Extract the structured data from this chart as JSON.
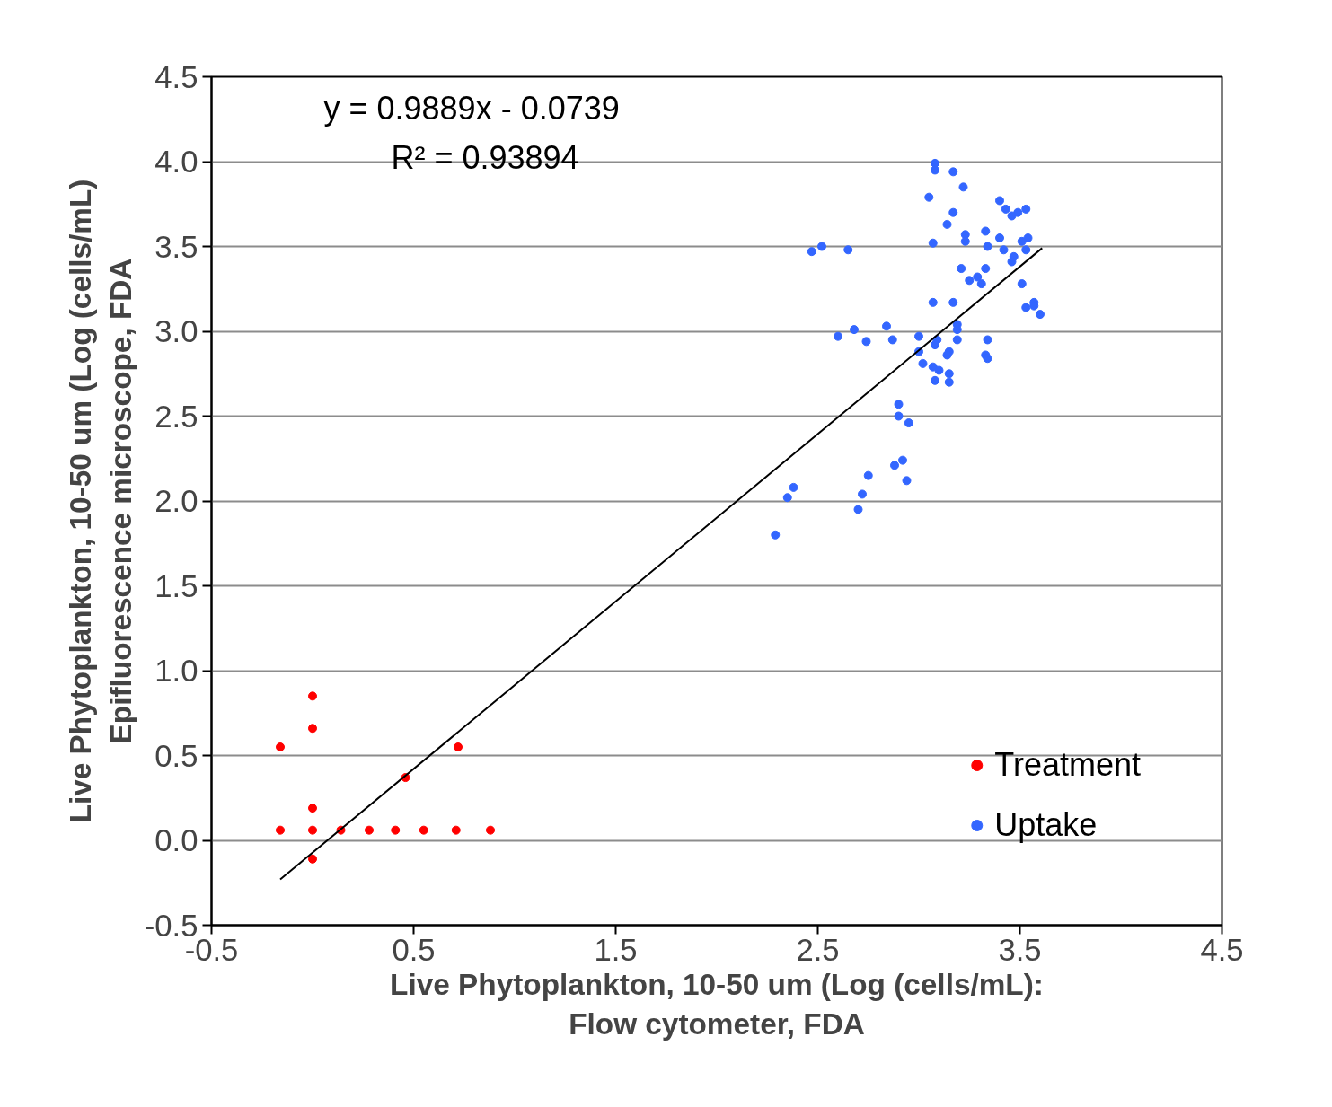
{
  "chart_data": {
    "type": "scatter",
    "xlabel": "Live Phytoplankton, 10-50 um (Log (cells/mL):\nFlow cytometer, FDA",
    "ylabel": "Live Phytoplankton, 10-50 um (Log (cells/mL)\nEpifluorescence microscope, FDA",
    "annotations": [
      "y = 0.9889x - 0.0739",
      "R² = 0.93894"
    ],
    "xlim": [
      -0.5,
      4.5
    ],
    "ylim": [
      -0.5,
      4.5
    ],
    "xticks": [
      -0.5,
      0.5,
      1.5,
      2.5,
      3.5,
      4.5
    ],
    "yticks": [
      -0.5,
      {
        "value": 0,
        "label": "0.0"
      },
      0.5,
      {
        "value": 1,
        "label": "1.0"
      },
      1.5,
      {
        "value": 2,
        "label": "2.0"
      },
      2.5,
      {
        "value": 3,
        "label": "3.0"
      },
      3.5,
      {
        "value": 4,
        "label": "4.0"
      },
      4.5
    ],
    "grid": "y",
    "legend": "bottom right",
    "series": [
      {
        "name": "Treatment",
        "color": "#ff0000",
        "marker": "circle",
        "x": [
          -0.16,
          0.0,
          0.0,
          0.0,
          0.0,
          0.72,
          0.46,
          -0.16,
          0.0,
          0.14,
          0.28,
          0.41,
          0.55,
          0.71,
          0.88
        ],
        "values": [
          0.55,
          0.85,
          0.66,
          0.19,
          -0.11,
          0.55,
          0.37,
          0.06,
          0.06,
          0.06,
          0.06,
          0.06,
          0.06,
          0.06,
          0.06
        ]
      },
      {
        "name": "Uptake",
        "color": "#3366ff",
        "marker": "circle",
        "x": [
          3.08,
          3.08,
          3.17,
          3.22,
          3.05,
          3.4,
          3.43,
          3.53,
          3.49,
          3.46,
          3.17,
          3.14,
          3.33,
          3.23,
          3.23,
          3.4,
          3.54,
          3.51,
          3.07,
          2.52,
          2.47,
          2.65,
          3.34,
          3.42,
          3.53,
          3.47,
          3.46,
          3.21,
          3.33,
          3.29,
          3.25,
          3.31,
          3.51,
          3.07,
          3.17,
          3.57,
          3.57,
          3.53,
          3.6,
          3.19,
          2.68,
          2.84,
          3.19,
          2.6,
          3.0,
          2.74,
          2.87,
          3.09,
          3.19,
          3.34,
          3.08,
          3.0,
          3.15,
          3.14,
          3.33,
          3.34,
          3.02,
          3.07,
          3.1,
          3.15,
          3.08,
          3.15,
          2.9,
          2.9,
          2.95,
          2.92,
          2.88,
          2.75,
          2.94,
          2.38,
          2.35,
          2.72,
          2.7,
          2.29
        ],
        "values": [
          3.99,
          3.95,
          3.94,
          3.85,
          3.79,
          3.77,
          3.72,
          3.72,
          3.7,
          3.68,
          3.7,
          3.63,
          3.59,
          3.57,
          3.53,
          3.55,
          3.55,
          3.53,
          3.52,
          3.5,
          3.47,
          3.48,
          3.5,
          3.48,
          3.48,
          3.44,
          3.41,
          3.37,
          3.37,
          3.32,
          3.3,
          3.28,
          3.28,
          3.17,
          3.17,
          3.17,
          3.15,
          3.14,
          3.1,
          3.04,
          3.01,
          3.03,
          3.01,
          2.97,
          2.97,
          2.94,
          2.95,
          2.95,
          2.95,
          2.95,
          2.92,
          2.88,
          2.88,
          2.86,
          2.86,
          2.84,
          2.81,
          2.79,
          2.77,
          2.75,
          2.71,
          2.7,
          2.57,
          2.5,
          2.46,
          2.24,
          2.21,
          2.15,
          2.12,
          2.08,
          2.02,
          2.04,
          1.95,
          1.8
        ]
      },
      {
        "type": "line",
        "color": "#000000",
        "marker": "none",
        "x": [
          -0.16,
          3.61
        ],
        "values": [
          -0.23,
          3.49
        ]
      }
    ]
  }
}
